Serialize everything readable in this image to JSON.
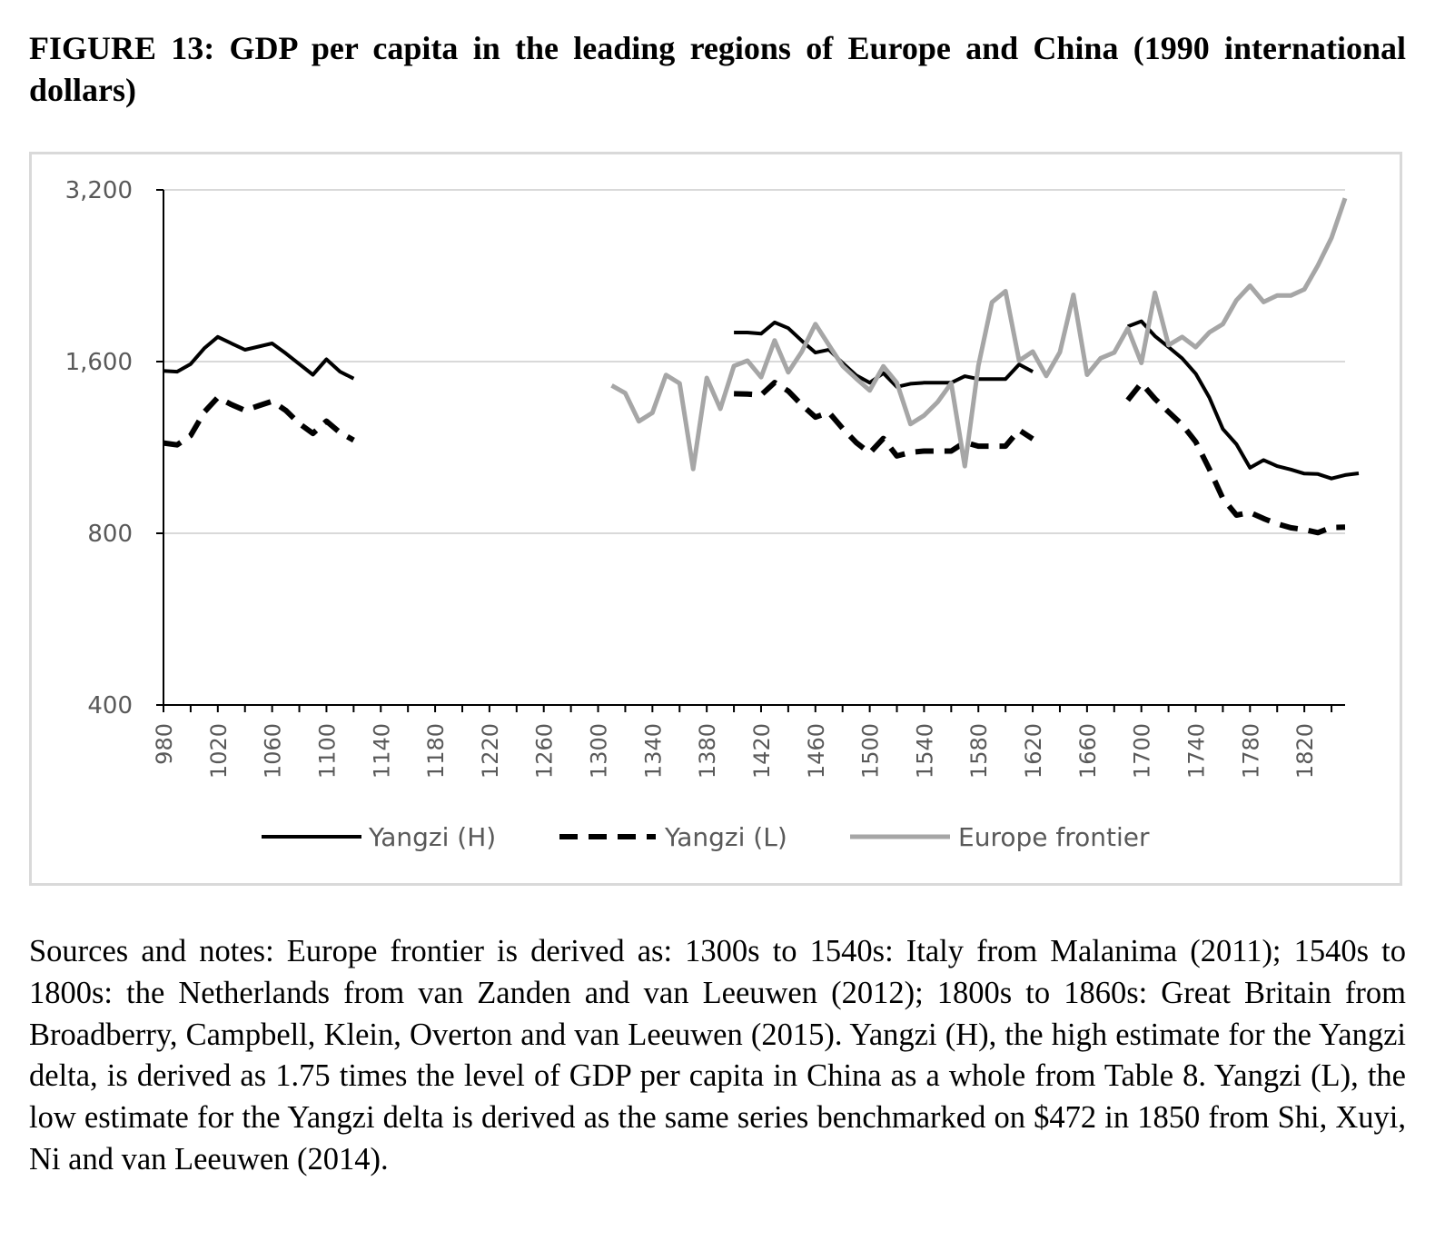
{
  "figure": {
    "title": "FIGURE 13: GDP per capita in the leading regions of Europe and China (1990 international dollars)",
    "notes": "Sources and notes: Europe frontier is derived as: 1300s to 1540s: Italy from Malanima (2011); 1540s to 1800s: the Netherlands from van Zanden and van Leeuwen (2012); 1800s to 1860s: Great Britain from Broadberry, Campbell, Klein, Overton and van Leeuwen (2015). Yangzi (H), the high estimate for the Yangzi delta, is derived as 1.75 times the level of GDP per capita in China as a whole from Table 8. Yangzi (L), the low estimate for the Yangzi delta is derived as the same series benchmarked on $472 in 1850 from Shi, Xuyi, Ni and van Leeuwen (2014)."
  },
  "chart_data": {
    "type": "line",
    "title": "",
    "xlabel": "",
    "ylabel": "",
    "y_scale": "log2",
    "ylim": [
      400,
      3200
    ],
    "y_ticks": [
      400,
      800,
      1600,
      3200
    ],
    "y_tick_labels": [
      "400",
      "800",
      "1,600",
      "3,200"
    ],
    "x_range": [
      980,
      1850
    ],
    "x_tick_labels": [
      "980",
      "1020",
      "1060",
      "1100",
      "1140",
      "1180",
      "1220",
      "1260",
      "1300",
      "1340",
      "1380",
      "1420",
      "1460",
      "1500",
      "1540",
      "1580",
      "1620",
      "1660",
      "1700",
      "1740",
      "1780",
      "1820"
    ],
    "grid": true,
    "legend_position": "bottom",
    "series": [
      {
        "name": "Yangzi (H)",
        "color": "#000000",
        "style": "solid",
        "points": [
          [
            980,
            1541
          ],
          [
            990,
            1536
          ],
          [
            1000,
            1584
          ],
          [
            1010,
            1688
          ],
          [
            1020,
            1768
          ],
          [
            1030,
            1722
          ],
          [
            1040,
            1678
          ],
          [
            1050,
            1700
          ],
          [
            1060,
            1722
          ],
          [
            1070,
            1654
          ],
          [
            1080,
            1584
          ],
          [
            1090,
            1517
          ],
          [
            1100,
            1615
          ],
          [
            1110,
            1536
          ],
          [
            1120,
            1494
          ],
          [
            1400,
            1799
          ],
          [
            1410,
            1799
          ],
          [
            1420,
            1791
          ],
          [
            1430,
            1874
          ],
          [
            1440,
            1831
          ],
          [
            1450,
            1740
          ],
          [
            1460,
            1659
          ],
          [
            1470,
            1679
          ],
          [
            1480,
            1591
          ],
          [
            1490,
            1514
          ],
          [
            1500,
            1469
          ],
          [
            1510,
            1527
          ],
          [
            1520,
            1445
          ],
          [
            1530,
            1463
          ],
          [
            1540,
            1469
          ],
          [
            1550,
            1469
          ],
          [
            1560,
            1469
          ],
          [
            1570,
            1508
          ],
          [
            1580,
            1491
          ],
          [
            1590,
            1491
          ],
          [
            1600,
            1491
          ],
          [
            1610,
            1582
          ],
          [
            1620,
            1536
          ],
          [
            1690,
            1843
          ],
          [
            1700,
            1883
          ],
          [
            1710,
            1774
          ],
          [
            1720,
            1697
          ],
          [
            1730,
            1621
          ],
          [
            1740,
            1524
          ],
          [
            1750,
            1384
          ],
          [
            1760,
            1219
          ],
          [
            1770,
            1146
          ],
          [
            1780,
            1042
          ],
          [
            1790,
            1075
          ],
          [
            1800,
            1049
          ],
          [
            1810,
            1035
          ],
          [
            1820,
            1018
          ],
          [
            1830,
            1016
          ],
          [
            1840,
            998
          ],
          [
            1850,
            1012
          ],
          [
            1860,
            1019
          ]
        ]
      },
      {
        "name": "Yangzi (L)",
        "color": "#000000",
        "style": "dashed",
        "points": [
          [
            980,
            1152
          ],
          [
            990,
            1143
          ],
          [
            1000,
            1187
          ],
          [
            1010,
            1305
          ],
          [
            1020,
            1384
          ],
          [
            1030,
            1345
          ],
          [
            1040,
            1314
          ],
          [
            1050,
            1339
          ],
          [
            1060,
            1363
          ],
          [
            1070,
            1314
          ],
          [
            1080,
            1246
          ],
          [
            1090,
            1197
          ],
          [
            1100,
            1258
          ],
          [
            1110,
            1201
          ],
          [
            1120,
            1165
          ],
          [
            1400,
            1405
          ],
          [
            1410,
            1403
          ],
          [
            1420,
            1398
          ],
          [
            1430,
            1470
          ],
          [
            1440,
            1421
          ],
          [
            1450,
            1343
          ],
          [
            1460,
            1279
          ],
          [
            1470,
            1303
          ],
          [
            1480,
            1222
          ],
          [
            1490,
            1154
          ],
          [
            1500,
            1106
          ],
          [
            1510,
            1173
          ],
          [
            1520,
            1093
          ],
          [
            1530,
            1109
          ],
          [
            1540,
            1115
          ],
          [
            1550,
            1115
          ],
          [
            1560,
            1115
          ],
          [
            1570,
            1155
          ],
          [
            1580,
            1137
          ],
          [
            1590,
            1137
          ],
          [
            1600,
            1137
          ],
          [
            1610,
            1214
          ],
          [
            1620,
            1171
          ],
          [
            1690,
            1369
          ],
          [
            1700,
            1467
          ],
          [
            1710,
            1377
          ],
          [
            1720,
            1306
          ],
          [
            1730,
            1240
          ],
          [
            1740,
            1158
          ],
          [
            1750,
            1037
          ],
          [
            1760,
            921
          ],
          [
            1770,
            861
          ],
          [
            1780,
            870
          ],
          [
            1790,
            849
          ],
          [
            1800,
            831
          ],
          [
            1810,
            818
          ],
          [
            1820,
            812
          ],
          [
            1830,
            802
          ],
          [
            1840,
            819
          ],
          [
            1850,
            820
          ]
        ]
      },
      {
        "name": "Europe frontier",
        "color": "#a6a6a6",
        "style": "solid",
        "points": [
          [
            1310,
            1453
          ],
          [
            1320,
            1409
          ],
          [
            1330,
            1257
          ],
          [
            1340,
            1301
          ],
          [
            1350,
            1516
          ],
          [
            1360,
            1465
          ],
          [
            1370,
            1037
          ],
          [
            1380,
            1498
          ],
          [
            1390,
            1322
          ],
          [
            1400,
            1572
          ],
          [
            1410,
            1606
          ],
          [
            1420,
            1502
          ],
          [
            1430,
            1743
          ],
          [
            1440,
            1532
          ],
          [
            1450,
            1665
          ],
          [
            1460,
            1862
          ],
          [
            1470,
            1710
          ],
          [
            1480,
            1572
          ],
          [
            1490,
            1494
          ],
          [
            1500,
            1424
          ],
          [
            1510,
            1570
          ],
          [
            1520,
            1469
          ],
          [
            1530,
            1243
          ],
          [
            1540,
            1287
          ],
          [
            1550,
            1359
          ],
          [
            1560,
            1466
          ],
          [
            1570,
            1049
          ],
          [
            1580,
            1572
          ],
          [
            1590,
            2033
          ],
          [
            1600,
            2126
          ],
          [
            1610,
            1606
          ],
          [
            1620,
            1666
          ],
          [
            1630,
            1510
          ],
          [
            1640,
            1662
          ],
          [
            1650,
            2095
          ],
          [
            1660,
            1517
          ],
          [
            1670,
            1622
          ],
          [
            1680,
            1659
          ],
          [
            1690,
            1829
          ],
          [
            1700,
            1591
          ],
          [
            1710,
            2113
          ],
          [
            1720,
            1710
          ],
          [
            1730,
            1767
          ],
          [
            1740,
            1696
          ],
          [
            1750,
            1800
          ],
          [
            1760,
            1862
          ],
          [
            1770,
            2050
          ],
          [
            1780,
            2173
          ],
          [
            1790,
            2035
          ],
          [
            1800,
            2090
          ],
          [
            1810,
            2089
          ],
          [
            1820,
            2142
          ],
          [
            1830,
            2359
          ],
          [
            1840,
            2636
          ],
          [
            1850,
            3094
          ]
        ]
      }
    ]
  }
}
